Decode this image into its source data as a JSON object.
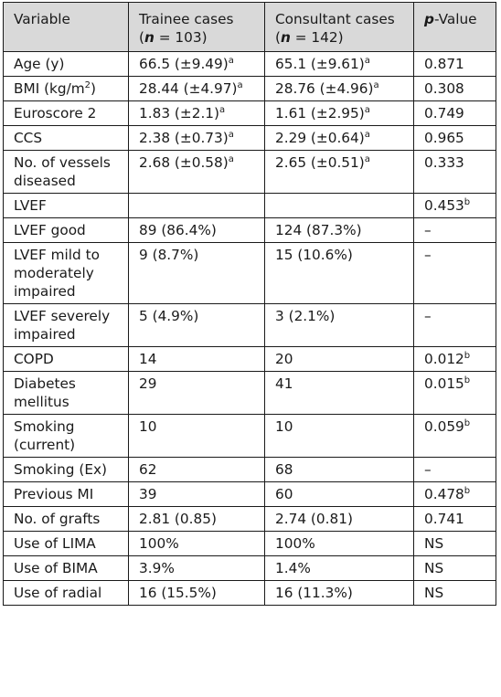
{
  "headers": {
    "variable": "Variable",
    "trainee_line1": "Trainee cases",
    "trainee_n_prefix": "(",
    "trainee_n_symbol": "n",
    "trainee_n_suffix": " = 103)",
    "consultant_line1": "Consultant cases",
    "consultant_n_prefix": "(",
    "consultant_n_symbol": "n",
    "consultant_n_suffix": " = 142)",
    "p_symbol": "p",
    "p_suffix": "-Value"
  },
  "rows": [
    {
      "variable": "Age (y)",
      "trainee": "66.5 (±9.49)",
      "trainee_sup": "a",
      "consultant": "65.1 (±9.61)",
      "consultant_sup": "a",
      "p": "0.871",
      "p_sup": ""
    },
    {
      "variable": "BMI (kg/m",
      "variable_sup": "2",
      "variable_end": ")",
      "trainee": "28.44 (±4.97)",
      "trainee_sup": "a",
      "consultant": "28.76 (±4.96)",
      "consultant_sup": "a",
      "p": "0.308",
      "p_sup": ""
    },
    {
      "variable": "Euroscore 2",
      "trainee": "1.83 (±2.1)",
      "trainee_sup": "a",
      "consultant": "1.61 (±2.95)",
      "consultant_sup": "a",
      "p": "0.749",
      "p_sup": ""
    },
    {
      "variable": "CCS",
      "trainee": "2.38 (±0.73)",
      "trainee_sup": "a",
      "consultant": "2.29 (±0.64)",
      "consultant_sup": "a",
      "p": "0.965",
      "p_sup": ""
    },
    {
      "variable": "No. of vessels diseased",
      "trainee": "2.68 (±0.58)",
      "trainee_sup": "a",
      "consultant": "2.65 (±0.51)",
      "consultant_sup": "a",
      "p": "0.333",
      "p_sup": ""
    },
    {
      "variable": "LVEF",
      "trainee": "",
      "trainee_sup": "",
      "consultant": "",
      "consultant_sup": "",
      "p": "0.453",
      "p_sup": "b"
    },
    {
      "variable": "LVEF good",
      "trainee": "89 (86.4%)",
      "trainee_sup": "",
      "consultant": "124 (87.3%)",
      "consultant_sup": "",
      "p": "–",
      "p_sup": ""
    },
    {
      "variable": "LVEF mild to moderately impaired",
      "trainee": "9 (8.7%)",
      "trainee_sup": "",
      "consultant": "15 (10.6%)",
      "consultant_sup": "",
      "p": "–",
      "p_sup": ""
    },
    {
      "variable": "LVEF severely impaired",
      "trainee": "5 (4.9%)",
      "trainee_sup": "",
      "consultant": "3 (2.1%)",
      "consultant_sup": "",
      "p": "–",
      "p_sup": ""
    },
    {
      "variable": "COPD",
      "trainee": "14",
      "trainee_sup": "",
      "consultant": "20",
      "consultant_sup": "",
      "p": "0.012",
      "p_sup": "b"
    },
    {
      "variable": "Diabetes mellitus",
      "trainee": "29",
      "trainee_sup": "",
      "consultant": "41",
      "consultant_sup": "",
      "p": "0.015",
      "p_sup": "b"
    },
    {
      "variable": "Smoking (current)",
      "trainee": "10",
      "trainee_sup": "",
      "consultant": "10",
      "consultant_sup": "",
      "p": "0.059",
      "p_sup": "b"
    },
    {
      "variable": "Smoking (Ex)",
      "trainee": "62",
      "trainee_sup": "",
      "consultant": "68",
      "consultant_sup": "",
      "p": "–",
      "p_sup": ""
    },
    {
      "variable": "Previous MI",
      "trainee": "39",
      "trainee_sup": "",
      "consultant": "60",
      "consultant_sup": "",
      "p": "0.478",
      "p_sup": "b"
    },
    {
      "variable": "No. of grafts",
      "trainee": "2.81 (0.85)",
      "trainee_sup": "",
      "consultant": "2.74 (0.81)",
      "consultant_sup": "",
      "p": "0.741",
      "p_sup": ""
    },
    {
      "variable": "Use of LIMA",
      "trainee": "100%",
      "trainee_sup": "",
      "consultant": "100%",
      "consultant_sup": "",
      "p": "NS",
      "p_sup": ""
    },
    {
      "variable": "Use of BIMA",
      "trainee": "3.9%",
      "trainee_sup": "",
      "consultant": "1.4%",
      "consultant_sup": "",
      "p": "NS",
      "p_sup": ""
    },
    {
      "variable": "Use of radial",
      "trainee": "16 (15.5%)",
      "trainee_sup": "",
      "consultant": "16 (11.3%)",
      "consultant_sup": "",
      "p": "NS",
      "p_sup": ""
    }
  ]
}
